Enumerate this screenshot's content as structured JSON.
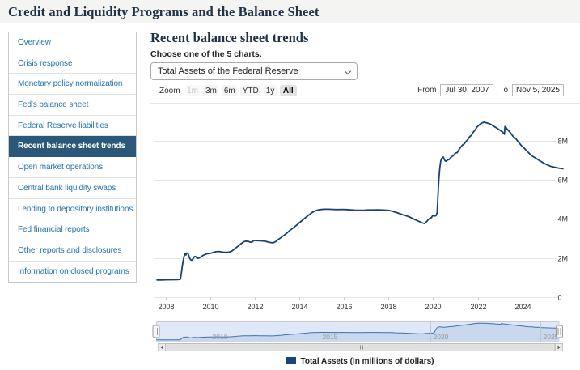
{
  "header": {
    "title": "Credit and Liquidity Programs and the Balance Sheet"
  },
  "sidebar": {
    "items": [
      {
        "label": "Overview",
        "selected": false
      },
      {
        "label": "Crisis response",
        "selected": false
      },
      {
        "label": "Monetary policy normalization",
        "selected": false
      },
      {
        "label": "Fed's balance sheet",
        "selected": false
      },
      {
        "label": "Federal Reserve liabilities",
        "selected": false
      },
      {
        "label": "Recent balance sheet trends",
        "selected": true
      },
      {
        "label": "Open market operations",
        "selected": false
      },
      {
        "label": "Central bank liquidity swaps",
        "selected": false
      },
      {
        "label": "Lending to depository institutions",
        "selected": false
      },
      {
        "label": "Fed financial reports",
        "selected": false
      },
      {
        "label": "Other reports and disclosures",
        "selected": false
      },
      {
        "label": "Information on closed programs",
        "selected": false
      }
    ]
  },
  "main": {
    "heading": "Recent balance sheet trends",
    "choose_label": "Choose one of the 5 charts.",
    "select_value": "Total Assets of the Federal Reserve",
    "zoom": {
      "label": "Zoom",
      "buttons": [
        {
          "label": "1m",
          "state": "disabled"
        },
        {
          "label": "3m",
          "state": "normal"
        },
        {
          "label": "6m",
          "state": "normal"
        },
        {
          "label": "YTD",
          "state": "normal"
        },
        {
          "label": "1y",
          "state": "normal"
        },
        {
          "label": "All",
          "state": "active"
        }
      ]
    },
    "range": {
      "from_label": "From",
      "from_value": "Jul 30, 2007",
      "to_label": "To",
      "to_value": "Nov 5, 2025"
    }
  },
  "legend": {
    "swatch_color": "#16477c",
    "label": "Total Assets (In millions of dollars)"
  },
  "chart_data": {
    "type": "line",
    "title": "Total Assets of the Federal Reserve",
    "ylabel": "In millions of dollars",
    "xlim": [
      2007.58,
      2025.85
    ],
    "ylim": [
      0,
      9900000
    ],
    "x_ticks": [
      2008,
      2010,
      2012,
      2014,
      2016,
      2018,
      2020,
      2022,
      2024
    ],
    "y_ticks": [
      {
        "v": 0,
        "label": "0"
      },
      {
        "v": 2000000,
        "label": "2M"
      },
      {
        "v": 4000000,
        "label": "4M"
      },
      {
        "v": 6000000,
        "label": "6M"
      },
      {
        "v": 8000000,
        "label": "8M"
      }
    ],
    "navigator_ticks": [
      2010,
      2015,
      2020,
      2025
    ],
    "grid": true,
    "legend_position": "bottom",
    "series": [
      {
        "name": "Total Assets (In millions of dollars)",
        "color": "#164373",
        "x": [
          2007.58,
          2007.8,
          2008.0,
          2008.3,
          2008.55,
          2008.65,
          2008.7,
          2008.74,
          2008.78,
          2008.82,
          2008.86,
          2008.9,
          2008.94,
          2009.0,
          2009.05,
          2009.1,
          2009.16,
          2009.22,
          2009.28,
          2009.33,
          2009.38,
          2009.44,
          2009.5,
          2009.58,
          2009.66,
          2009.75,
          2009.85,
          2009.95,
          2010.05,
          2010.15,
          2010.25,
          2010.35,
          2010.45,
          2010.55,
          2010.65,
          2010.75,
          2010.85,
          2010.95,
          2011.05,
          2011.15,
          2011.25,
          2011.35,
          2011.45,
          2011.52,
          2011.6,
          2011.7,
          2011.78,
          2011.88,
          2011.96,
          2012.05,
          2012.15,
          2012.25,
          2012.35,
          2012.45,
          2012.55,
          2012.65,
          2012.75,
          2012.85,
          2012.95,
          2013.05,
          2013.15,
          2013.25,
          2013.35,
          2013.45,
          2013.55,
          2013.65,
          2013.75,
          2013.85,
          2013.95,
          2014.05,
          2014.15,
          2014.25,
          2014.35,
          2014.45,
          2014.55,
          2014.65,
          2014.75,
          2014.85,
          2014.95,
          2015.1,
          2015.3,
          2015.5,
          2015.7,
          2015.9,
          2016.1,
          2016.3,
          2016.5,
          2016.7,
          2016.9,
          2017.1,
          2017.3,
          2017.5,
          2017.7,
          2017.9,
          2018.0,
          2018.15,
          2018.3,
          2018.45,
          2018.6,
          2018.75,
          2018.9,
          2019.05,
          2019.2,
          2019.35,
          2019.5,
          2019.62,
          2019.72,
          2019.78,
          2019.85,
          2019.92,
          2019.98,
          2020.05,
          2020.12,
          2020.18,
          2020.22,
          2020.26,
          2020.3,
          2020.34,
          2020.38,
          2020.42,
          2020.46,
          2020.5,
          2020.54,
          2020.58,
          2020.65,
          2020.72,
          2020.8,
          2020.9,
          2021.0,
          2021.08,
          2021.16,
          2021.24,
          2021.32,
          2021.4,
          2021.48,
          2021.56,
          2021.64,
          2021.72,
          2021.8,
          2021.88,
          2021.96,
          2022.04,
          2022.12,
          2022.2,
          2022.29,
          2022.38,
          2022.46,
          2022.54,
          2022.62,
          2022.7,
          2022.78,
          2022.86,
          2022.94,
          2023.02,
          2023.1,
          2023.16,
          2023.2,
          2023.22,
          2023.26,
          2023.32,
          2023.4,
          2023.48,
          2023.56,
          2023.64,
          2023.72,
          2023.8,
          2023.88,
          2023.96,
          2024.04,
          2024.12,
          2024.2,
          2024.28,
          2024.36,
          2024.44,
          2024.52,
          2024.6,
          2024.68,
          2024.76,
          2024.84,
          2024.92,
          2025.0,
          2025.08,
          2025.16,
          2025.24,
          2025.32,
          2025.4,
          2025.48,
          2025.56,
          2025.64,
          2025.72,
          2025.8,
          2025.85
        ],
        "y": [
          870000,
          873000,
          880000,
          884000,
          890000,
          910000,
          1210000,
          1560000,
          1870000,
          2080000,
          2210000,
          2150000,
          2250000,
          2230000,
          2040000,
          1920000,
          1880000,
          1950000,
          2060000,
          2080000,
          2020000,
          1970000,
          2000000,
          2060000,
          2120000,
          2170000,
          2210000,
          2230000,
          2250000,
          2290000,
          2320000,
          2330000,
          2320000,
          2300000,
          2290000,
          2290000,
          2300000,
          2340000,
          2430000,
          2520000,
          2610000,
          2700000,
          2790000,
          2840000,
          2860000,
          2850000,
          2810000,
          2820000,
          2900000,
          2890000,
          2890000,
          2880000,
          2870000,
          2860000,
          2830000,
          2800000,
          2780000,
          2790000,
          2850000,
          2950000,
          3030000,
          3110000,
          3200000,
          3290000,
          3390000,
          3480000,
          3570000,
          3660000,
          3760000,
          3860000,
          3950000,
          4050000,
          4140000,
          4230000,
          4320000,
          4380000,
          4430000,
          4460000,
          4480000,
          4500000,
          4500000,
          4490000,
          4480000,
          4490000,
          4480000,
          4470000,
          4450000,
          4450000,
          4450000,
          4460000,
          4460000,
          4470000,
          4460000,
          4450000,
          4440000,
          4400000,
          4350000,
          4290000,
          4230000,
          4180000,
          4120000,
          4040000,
          3960000,
          3880000,
          3800000,
          3760000,
          3880000,
          3970000,
          4020000,
          4070000,
          4170000,
          4150000,
          4160000,
          4310000,
          5250000,
          6080000,
          6620000,
          6940000,
          7090000,
          7140000,
          7170000,
          7060000,
          6970000,
          6960000,
          7020000,
          7050000,
          7160000,
          7240000,
          7370000,
          7400000,
          7550000,
          7680000,
          7790000,
          7850000,
          7970000,
          8070000,
          8210000,
          8290000,
          8450000,
          8550000,
          8700000,
          8790000,
          8870000,
          8920000,
          8960000,
          8930000,
          8900000,
          8870000,
          8820000,
          8760000,
          8710000,
          8650000,
          8590000,
          8530000,
          8470000,
          8390000,
          8340000,
          8730000,
          8700000,
          8600000,
          8500000,
          8400000,
          8270000,
          8180000,
          8100000,
          7980000,
          7870000,
          7760000,
          7680000,
          7590000,
          7480000,
          7400000,
          7300000,
          7230000,
          7170000,
          7120000,
          7060000,
          6990000,
          6940000,
          6890000,
          6840000,
          6790000,
          6750000,
          6710000,
          6680000,
          6660000,
          6640000,
          6620000,
          6600000,
          6590000,
          6580000,
          6570000
        ]
      }
    ]
  }
}
